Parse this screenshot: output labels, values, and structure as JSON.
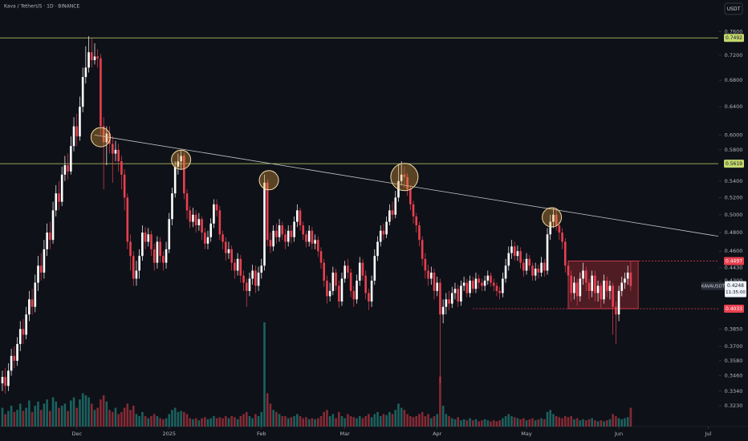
{
  "chart_data": {
    "type": "candlestick",
    "title": "Kava / TetherUS · 1D · BINANCE",
    "currency": "USDT",
    "symbol": "KAVAUSDT",
    "countdown": "11:35:00",
    "log_scale": true,
    "grid": false,
    "up_color": "#ffffff",
    "down_color": "#e8404f",
    "volume_up_color": "rgba(38,166,154,0.55)",
    "volume_down_color": "rgba(232,64,79,0.55)",
    "xlim": [
      -0.8,
      240.4
    ],
    "xticks": [
      {
        "value": 25,
        "label": "Dec"
      },
      {
        "value": 56,
        "label": "2025"
      },
      {
        "value": 87,
        "label": "Feb"
      },
      {
        "value": 115,
        "label": "Mar"
      },
      {
        "value": 146,
        "label": "Apr"
      },
      {
        "value": 176,
        "label": "May"
      },
      {
        "value": 207,
        "label": "Jun"
      },
      {
        "value": 237,
        "label": "Jul"
      }
    ],
    "ylim": [
      0.308,
      0.817
    ],
    "yticks": [
      {
        "value": 0.76,
        "label": "0.7600"
      },
      {
        "value": 0.72,
        "label": "0.7200"
      },
      {
        "value": 0.68,
        "label": "0.6800"
      },
      {
        "value": 0.64,
        "label": "0.6400"
      },
      {
        "value": 0.6,
        "label": "0.6000"
      },
      {
        "value": 0.58,
        "label": "0.5800"
      },
      {
        "value": 0.54,
        "label": "0.5400"
      },
      {
        "value": 0.52,
        "label": "0.5200"
      },
      {
        "value": 0.5,
        "label": "0.5000"
      },
      {
        "value": 0.48,
        "label": "0.4800"
      },
      {
        "value": 0.46,
        "label": "0.4600"
      },
      {
        "value": 0.443,
        "label": "0.4430"
      },
      {
        "value": 0.43,
        "label": "0.4300"
      },
      {
        "value": 0.385,
        "label": "0.3850"
      },
      {
        "value": 0.37,
        "label": "0.3700"
      },
      {
        "value": 0.358,
        "label": "0.3580"
      },
      {
        "value": 0.346,
        "label": "0.3460"
      },
      {
        "value": 0.334,
        "label": "0.3340"
      },
      {
        "value": 0.323,
        "label": "0.3230"
      }
    ],
    "open": [
      0.34,
      0.345,
      0.338,
      0.35,
      0.362,
      0.358,
      0.372,
      0.385,
      0.38,
      0.398,
      0.412,
      0.405,
      0.428,
      0.445,
      0.438,
      0.462,
      0.48,
      0.472,
      0.505,
      0.525,
      0.515,
      0.548,
      0.56,
      0.552,
      0.585,
      0.612,
      0.598,
      0.64,
      0.685,
      0.7,
      0.725,
      0.712,
      0.718,
      0.715,
      0.612,
      0.59,
      0.602,
      0.588,
      0.575,
      0.58,
      0.565,
      0.548,
      0.52,
      0.47,
      0.455,
      0.432,
      0.44,
      0.455,
      0.48,
      0.47,
      0.478,
      0.462,
      0.448,
      0.47,
      0.455,
      0.448,
      0.462,
      0.495,
      0.525,
      0.558,
      0.565,
      0.572,
      0.525,
      0.505,
      0.492,
      0.5,
      0.488,
      0.495,
      0.48,
      0.468,
      0.475,
      0.49,
      0.512,
      0.505,
      0.478,
      0.47,
      0.458,
      0.462,
      0.448,
      0.44,
      0.452,
      0.435,
      0.428,
      0.42,
      0.432,
      0.44,
      0.425,
      0.438,
      0.445,
      0.538,
      0.472,
      0.465,
      0.482,
      0.475,
      0.488,
      0.478,
      0.47,
      0.482,
      0.475,
      0.492,
      0.505,
      0.488,
      0.478,
      0.47,
      0.482,
      0.468,
      0.472,
      0.46,
      0.448,
      0.43,
      0.415,
      0.42,
      0.438,
      0.425,
      0.41,
      0.432,
      0.445,
      0.438,
      0.42,
      0.412,
      0.43,
      0.448,
      0.435,
      0.418,
      0.41,
      0.43,
      0.455,
      0.47,
      0.482,
      0.478,
      0.492,
      0.505,
      0.5,
      0.52,
      0.54,
      0.548,
      0.545,
      0.53,
      0.512,
      0.498,
      0.488,
      0.472,
      0.452,
      0.44,
      0.432,
      0.438,
      0.42,
      0.428,
      0.398,
      0.405,
      0.412,
      0.408,
      0.418,
      0.422,
      0.41,
      0.425,
      0.428,
      0.418,
      0.43,
      0.422,
      0.432,
      0.428,
      0.425,
      0.43,
      0.435,
      0.428,
      0.425,
      0.42,
      0.418,
      0.432,
      0.445,
      0.458,
      0.465,
      0.455,
      0.46,
      0.448,
      0.44,
      0.452,
      0.445,
      0.435,
      0.442,
      0.438,
      0.448,
      0.44,
      0.478,
      0.492,
      0.5,
      0.488,
      0.48,
      0.47,
      0.445,
      0.435,
      0.418,
      0.428,
      0.415,
      0.432,
      0.44,
      0.428,
      0.42,
      0.435,
      0.418,
      0.425,
      0.412,
      0.43,
      0.42,
      0.425,
      0.405,
      0.398,
      0.42,
      0.428,
      0.432,
      0.438
    ],
    "high": [
      0.35,
      0.352,
      0.356,
      0.368,
      0.37,
      0.378,
      0.392,
      0.394,
      0.405,
      0.42,
      0.422,
      0.436,
      0.455,
      0.458,
      0.472,
      0.49,
      0.492,
      0.515,
      0.535,
      0.54,
      0.558,
      0.572,
      0.575,
      0.598,
      0.625,
      0.63,
      0.655,
      0.7,
      0.735,
      0.752,
      0.748,
      0.74,
      0.73,
      0.722,
      0.625,
      0.612,
      0.612,
      0.598,
      0.592,
      0.588,
      0.572,
      0.555,
      0.525,
      0.478,
      0.46,
      0.45,
      0.462,
      0.488,
      0.486,
      0.485,
      0.482,
      0.468,
      0.476,
      0.475,
      0.46,
      0.47,
      0.502,
      0.532,
      0.565,
      0.575,
      0.58,
      0.576,
      0.53,
      0.51,
      0.508,
      0.505,
      0.502,
      0.498,
      0.485,
      0.482,
      0.496,
      0.518,
      0.518,
      0.51,
      0.482,
      0.475,
      0.47,
      0.466,
      0.452,
      0.458,
      0.456,
      0.44,
      0.432,
      0.438,
      0.446,
      0.445,
      0.444,
      0.452,
      0.548,
      0.542,
      0.48,
      0.488,
      0.49,
      0.495,
      0.492,
      0.484,
      0.488,
      0.488,
      0.498,
      0.512,
      0.508,
      0.492,
      0.482,
      0.488,
      0.486,
      0.478,
      0.476,
      0.464,
      0.452,
      0.435,
      0.428,
      0.444,
      0.442,
      0.43,
      0.438,
      0.45,
      0.452,
      0.442,
      0.425,
      0.436,
      0.454,
      0.452,
      0.44,
      0.422,
      0.435,
      0.462,
      0.476,
      0.488,
      0.49,
      0.498,
      0.512,
      0.515,
      0.528,
      0.56,
      0.565,
      0.558,
      0.55,
      0.535,
      0.516,
      0.502,
      0.492,
      0.476,
      0.458,
      0.446,
      0.444,
      0.442,
      0.434,
      0.432,
      0.412,
      0.418,
      0.42,
      0.424,
      0.428,
      0.426,
      0.43,
      0.434,
      0.432,
      0.435,
      0.434,
      0.438,
      0.436,
      0.432,
      0.435,
      0.44,
      0.438,
      0.432,
      0.428,
      0.424,
      0.438,
      0.452,
      0.465,
      0.472,
      0.47,
      0.466,
      0.464,
      0.452,
      0.458,
      0.456,
      0.448,
      0.448,
      0.446,
      0.454,
      0.452,
      0.485,
      0.5,
      0.508,
      0.505,
      0.492,
      0.485,
      0.474,
      0.45,
      0.44,
      0.434,
      0.432,
      0.438,
      0.448,
      0.444,
      0.432,
      0.44,
      0.44,
      0.43,
      0.428,
      0.436,
      0.434,
      0.43,
      0.428,
      0.41,
      0.425,
      0.434,
      0.438,
      0.445,
      0.45
    ],
    "low": [
      0.334,
      0.332,
      0.334,
      0.346,
      0.352,
      0.354,
      0.366,
      0.372,
      0.376,
      0.392,
      0.398,
      0.4,
      0.42,
      0.43,
      0.432,
      0.455,
      0.462,
      0.468,
      0.498,
      0.505,
      0.51,
      0.54,
      0.542,
      0.548,
      0.578,
      0.585,
      0.592,
      0.632,
      0.675,
      0.692,
      0.7,
      0.705,
      0.7,
      0.6,
      0.53,
      0.56,
      0.575,
      0.538,
      0.565,
      0.552,
      0.53,
      0.505,
      0.462,
      0.44,
      0.425,
      0.425,
      0.432,
      0.45,
      0.462,
      0.465,
      0.455,
      0.44,
      0.442,
      0.448,
      0.44,
      0.442,
      0.458,
      0.488,
      0.52,
      0.548,
      0.555,
      0.518,
      0.495,
      0.485,
      0.486,
      0.48,
      0.482,
      0.472,
      0.462,
      0.462,
      0.47,
      0.485,
      0.498,
      0.472,
      0.462,
      0.45,
      0.452,
      0.44,
      0.432,
      0.435,
      0.428,
      0.42,
      0.405,
      0.415,
      0.426,
      0.418,
      0.42,
      0.432,
      0.44,
      0.465,
      0.458,
      0.46,
      0.468,
      0.47,
      0.472,
      0.462,
      0.465,
      0.468,
      0.47,
      0.486,
      0.482,
      0.472,
      0.464,
      0.465,
      0.462,
      0.462,
      0.454,
      0.442,
      0.424,
      0.408,
      0.41,
      0.416,
      0.42,
      0.404,
      0.406,
      0.428,
      0.432,
      0.414,
      0.405,
      0.408,
      0.425,
      0.43,
      0.412,
      0.402,
      0.405,
      0.426,
      0.45,
      0.465,
      0.472,
      0.474,
      0.488,
      0.494,
      0.496,
      0.515,
      0.535,
      0.532,
      0.522,
      0.505,
      0.49,
      0.48,
      0.465,
      0.445,
      0.432,
      0.425,
      0.426,
      0.412,
      0.415,
      0.34,
      0.39,
      0.398,
      0.402,
      0.404,
      0.412,
      0.405,
      0.406,
      0.42,
      0.414,
      0.414,
      0.418,
      0.418,
      0.422,
      0.42,
      0.42,
      0.426,
      0.424,
      0.42,
      0.415,
      0.412,
      0.414,
      0.428,
      0.44,
      0.452,
      0.45,
      0.45,
      0.442,
      0.434,
      0.436,
      0.44,
      0.43,
      0.43,
      0.432,
      0.434,
      0.434,
      0.436,
      0.472,
      0.485,
      0.482,
      0.472,
      0.462,
      0.438,
      0.428,
      0.41,
      0.412,
      0.406,
      0.41,
      0.426,
      0.42,
      0.412,
      0.414,
      0.41,
      0.41,
      0.404,
      0.408,
      0.414,
      0.412,
      0.38,
      0.372,
      0.392,
      0.415,
      0.422,
      0.426,
      0.42
    ],
    "close": [
      0.345,
      0.338,
      0.35,
      0.362,
      0.358,
      0.372,
      0.385,
      0.38,
      0.398,
      0.412,
      0.405,
      0.428,
      0.445,
      0.438,
      0.462,
      0.48,
      0.472,
      0.505,
      0.525,
      0.515,
      0.548,
      0.56,
      0.552,
      0.585,
      0.612,
      0.598,
      0.64,
      0.685,
      0.7,
      0.725,
      0.712,
      0.718,
      0.715,
      0.612,
      0.59,
      0.602,
      0.588,
      0.575,
      0.58,
      0.565,
      0.548,
      0.52,
      0.47,
      0.455,
      0.432,
      0.44,
      0.455,
      0.48,
      0.47,
      0.478,
      0.462,
      0.448,
      0.47,
      0.455,
      0.448,
      0.462,
      0.495,
      0.525,
      0.558,
      0.565,
      0.572,
      0.525,
      0.505,
      0.492,
      0.5,
      0.488,
      0.495,
      0.48,
      0.468,
      0.475,
      0.49,
      0.512,
      0.505,
      0.478,
      0.47,
      0.458,
      0.462,
      0.448,
      0.44,
      0.452,
      0.435,
      0.428,
      0.42,
      0.432,
      0.44,
      0.425,
      0.438,
      0.445,
      0.538,
      0.472,
      0.465,
      0.482,
      0.475,
      0.488,
      0.478,
      0.47,
      0.482,
      0.475,
      0.492,
      0.505,
      0.488,
      0.478,
      0.47,
      0.482,
      0.468,
      0.472,
      0.46,
      0.448,
      0.43,
      0.415,
      0.42,
      0.438,
      0.425,
      0.41,
      0.432,
      0.445,
      0.438,
      0.42,
      0.412,
      0.43,
      0.448,
      0.435,
      0.418,
      0.41,
      0.43,
      0.455,
      0.47,
      0.482,
      0.478,
      0.492,
      0.505,
      0.5,
      0.52,
      0.54,
      0.548,
      0.545,
      0.53,
      0.512,
      0.498,
      0.488,
      0.472,
      0.452,
      0.44,
      0.432,
      0.438,
      0.42,
      0.428,
      0.398,
      0.405,
      0.412,
      0.408,
      0.418,
      0.422,
      0.41,
      0.425,
      0.428,
      0.418,
      0.43,
      0.422,
      0.432,
      0.428,
      0.425,
      0.43,
      0.435,
      0.428,
      0.425,
      0.42,
      0.418,
      0.432,
      0.445,
      0.458,
      0.465,
      0.455,
      0.46,
      0.448,
      0.44,
      0.452,
      0.445,
      0.435,
      0.442,
      0.438,
      0.448,
      0.44,
      0.478,
      0.492,
      0.5,
      0.488,
      0.48,
      0.47,
      0.445,
      0.435,
      0.418,
      0.428,
      0.415,
      0.432,
      0.44,
      0.428,
      0.42,
      0.435,
      0.418,
      0.425,
      0.412,
      0.43,
      0.42,
      0.425,
      0.405,
      0.398,
      0.42,
      0.428,
      0.432,
      0.438,
      0.4248
    ],
    "volume": [
      18,
      12,
      15,
      20,
      14,
      16,
      22,
      15,
      18,
      25,
      14,
      20,
      24,
      16,
      22,
      26,
      15,
      28,
      24,
      18,
      20,
      22,
      15,
      25,
      28,
      18,
      26,
      32,
      30,
      28,
      22,
      16,
      18,
      26,
      30,
      24,
      16,
      14,
      18,
      12,
      14,
      18,
      22,
      16,
      20,
      12,
      10,
      14,
      10,
      8,
      10,
      12,
      10,
      8,
      7,
      8,
      12,
      16,
      18,
      14,
      15,
      14,
      12,
      8,
      7,
      8,
      6,
      8,
      9,
      7,
      8,
      10,
      8,
      9,
      8,
      10,
      8,
      10,
      9,
      7,
      10,
      12,
      14,
      10,
      8,
      12,
      10,
      14,
      100,
      32,
      22,
      16,
      14,
      12,
      10,
      10,
      8,
      9,
      10,
      12,
      10,
      8,
      9,
      7,
      8,
      7,
      8,
      10,
      14,
      16,
      10,
      12,
      8,
      14,
      10,
      8,
      12,
      10,
      9,
      8,
      10,
      8,
      10,
      12,
      9,
      12,
      14,
      10,
      12,
      11,
      14,
      12,
      16,
      22,
      18,
      16,
      12,
      10,
      9,
      10,
      12,
      14,
      10,
      12,
      8,
      10,
      12,
      48,
      20,
      12,
      10,
      8,
      7,
      9,
      6,
      7,
      6,
      8,
      6,
      7,
      5,
      6,
      7,
      6,
      5,
      6,
      5,
      6,
      8,
      10,
      12,
      10,
      9,
      8,
      7,
      8,
      6,
      7,
      8,
      6,
      7,
      8,
      7,
      14,
      16,
      12,
      10,
      9,
      8,
      10,
      9,
      10,
      7,
      8,
      6,
      7,
      6,
      7,
      8,
      6,
      5,
      6,
      5,
      6,
      7,
      12,
      10,
      8,
      7,
      8,
      9,
      18
    ],
    "levels": [
      {
        "value": 0.7492,
        "color": "#c5d86d",
        "dashed": false
      },
      {
        "value": 0.5619,
        "color": "#c5d86d",
        "dashed": false
      },
      {
        "value": 0.4497,
        "color": "#e8404f",
        "dashed": true,
        "from": 190
      },
      {
        "value": 0.4033,
        "color": "#e8404f",
        "dashed": true,
        "from": 158
      }
    ],
    "trendline": {
      "start": {
        "day": 31,
        "price": 0.6
      },
      "end": {
        "day": 240.4,
        "price": 0.476
      },
      "color": "#c8c8c8"
    },
    "circles": [
      {
        "day": 33,
        "price": 0.597
      },
      {
        "day": 60,
        "price": 0.567
      },
      {
        "day": 89.5,
        "price": 0.541
      },
      {
        "day": 135,
        "price": 0.545
      },
      {
        "day": 184.5,
        "price": 0.497
      }
    ],
    "range_box": {
      "from": 190,
      "to": 213.5,
      "top": 0.4497,
      "bottom": 0.4033
    }
  }
}
